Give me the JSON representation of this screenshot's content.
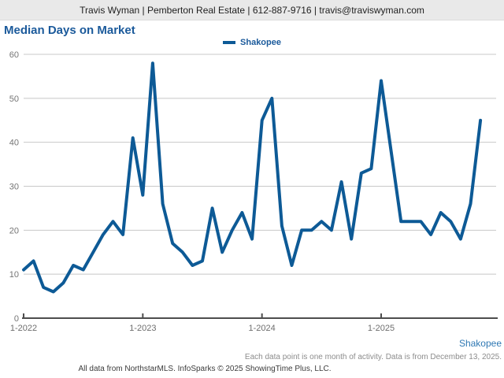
{
  "header": {
    "contact_bar": "Travis Wyman | Pemberton Real Estate | 612-887-9716 | travis@traviswyman.com"
  },
  "title": "Median Days on Market",
  "legend": {
    "label": "Shakopee"
  },
  "bottom_series_label": "Shakopee",
  "footnotes": {
    "line1": "Each data point is one month of activity. Data is from December 13, 2025.",
    "line2": "All data from NorthstarMLS. InfoSparks © 2025 ShowingTime Plus, LLC."
  },
  "colors": {
    "line": "#0d5a96",
    "title_blue": "#1b5a9b",
    "series_label_blue": "#2f78b3",
    "gridline": "#c8c8c8",
    "axis": "#4d4d4d",
    "tick_label": "#757575",
    "header_bg": "#e9e9e9"
  },
  "chart_data": {
    "type": "line",
    "title": "Median Days on Market",
    "x_start": "1-2022",
    "x_end": "11-2025",
    "x_tick_labels": [
      "1-2022",
      "1-2023",
      "1-2024",
      "1-2025"
    ],
    "x_tick_month_index": [
      0,
      12,
      24,
      36
    ],
    "y_ticks": [
      0,
      10,
      20,
      30,
      40,
      50,
      60
    ],
    "ylim": [
      0,
      60
    ],
    "grid": "horizontal",
    "legend_position": "top-center",
    "series": [
      {
        "name": "Shakopee",
        "values": [
          11,
          13,
          7,
          6,
          8,
          12,
          11,
          15,
          19,
          22,
          19,
          41,
          28,
          58,
          26,
          17,
          15,
          12,
          13,
          25,
          15,
          20,
          24,
          18,
          45,
          50,
          21,
          12,
          20,
          20,
          22,
          20,
          31,
          18,
          33,
          34,
          54,
          38,
          22,
          22,
          22,
          19,
          24,
          22,
          18,
          26,
          45
        ]
      }
    ]
  }
}
